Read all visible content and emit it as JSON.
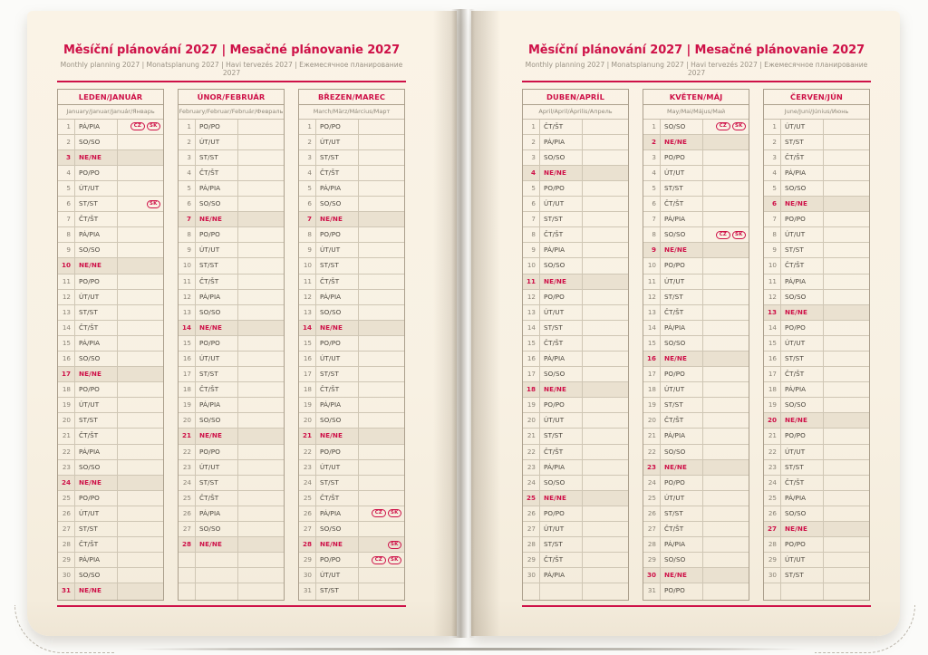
{
  "colors": {
    "accent_red": "#ce1148",
    "page_cream": "#f8f1e3",
    "sunday_row_bg": "#eae1d0",
    "grid_line": "#ab9f8c",
    "day_text": "#4b463d",
    "number_text": "#8a8376"
  },
  "holiday_badge_labels": [
    "CZ",
    "SK"
  ],
  "pages": [
    {
      "title": "Měsíční plánování 2027 | Mesačné plánovanie 2027",
      "subtitle": "Monthly planning 2027 | Monatsplanung 2027 | Havi tervezés 2027 | Ежемесячное планирование 2027",
      "months": [
        {
          "id": "january",
          "header": "LEDEN/JANUÁR",
          "subheader": "January/Januar/Január/Январь",
          "empty_rows": 0,
          "days": [
            {
              "n": 1,
              "w": "PÁ/PIA",
              "b": [
                "CZ",
                "SK"
              ]
            },
            {
              "n": 2,
              "w": "SO/SO"
            },
            {
              "n": 3,
              "w": "NE/NE"
            },
            {
              "n": 4,
              "w": "PO/PO"
            },
            {
              "n": 5,
              "w": "ÚT/UT"
            },
            {
              "n": 6,
              "w": "ST/ST",
              "b": [
                "SK"
              ]
            },
            {
              "n": 7,
              "w": "ČT/ŠT"
            },
            {
              "n": 8,
              "w": "PÁ/PIA"
            },
            {
              "n": 9,
              "w": "SO/SO"
            },
            {
              "n": 10,
              "w": "NE/NE"
            },
            {
              "n": 11,
              "w": "PO/PO"
            },
            {
              "n": 12,
              "w": "ÚT/UT"
            },
            {
              "n": 13,
              "w": "ST/ST"
            },
            {
              "n": 14,
              "w": "ČT/ŠT"
            },
            {
              "n": 15,
              "w": "PÁ/PIA"
            },
            {
              "n": 16,
              "w": "SO/SO"
            },
            {
              "n": 17,
              "w": "NE/NE"
            },
            {
              "n": 18,
              "w": "PO/PO"
            },
            {
              "n": 19,
              "w": "ÚT/UT"
            },
            {
              "n": 20,
              "w": "ST/ST"
            },
            {
              "n": 21,
              "w": "ČT/ŠT"
            },
            {
              "n": 22,
              "w": "PÁ/PIA"
            },
            {
              "n": 23,
              "w": "SO/SO"
            },
            {
              "n": 24,
              "w": "NE/NE"
            },
            {
              "n": 25,
              "w": "PO/PO"
            },
            {
              "n": 26,
              "w": "ÚT/UT"
            },
            {
              "n": 27,
              "w": "ST/ST"
            },
            {
              "n": 28,
              "w": "ČT/ŠT"
            },
            {
              "n": 29,
              "w": "PÁ/PIA"
            },
            {
              "n": 30,
              "w": "SO/SO"
            },
            {
              "n": 31,
              "w": "NE/NE"
            }
          ]
        },
        {
          "id": "february",
          "header": "ÚNOR/FEBRUÁR",
          "subheader": "February/Februar/Február/Февраль",
          "empty_rows": 3,
          "days": [
            {
              "n": 1,
              "w": "PO/PO"
            },
            {
              "n": 2,
              "w": "ÚT/UT"
            },
            {
              "n": 3,
              "w": "ST/ST"
            },
            {
              "n": 4,
              "w": "ČT/ŠT"
            },
            {
              "n": 5,
              "w": "PÁ/PIA"
            },
            {
              "n": 6,
              "w": "SO/SO"
            },
            {
              "n": 7,
              "w": "NE/NE"
            },
            {
              "n": 8,
              "w": "PO/PO"
            },
            {
              "n": 9,
              "w": "ÚT/UT"
            },
            {
              "n": 10,
              "w": "ST/ST"
            },
            {
              "n": 11,
              "w": "ČT/ŠT"
            },
            {
              "n": 12,
              "w": "PÁ/PIA"
            },
            {
              "n": 13,
              "w": "SO/SO"
            },
            {
              "n": 14,
              "w": "NE/NE"
            },
            {
              "n": 15,
              "w": "PO/PO"
            },
            {
              "n": 16,
              "w": "ÚT/UT"
            },
            {
              "n": 17,
              "w": "ST/ST"
            },
            {
              "n": 18,
              "w": "ČT/ŠT"
            },
            {
              "n": 19,
              "w": "PÁ/PIA"
            },
            {
              "n": 20,
              "w": "SO/SO"
            },
            {
              "n": 21,
              "w": "NE/NE"
            },
            {
              "n": 22,
              "w": "PO/PO"
            },
            {
              "n": 23,
              "w": "ÚT/UT"
            },
            {
              "n": 24,
              "w": "ST/ST"
            },
            {
              "n": 25,
              "w": "ČT/ŠT"
            },
            {
              "n": 26,
              "w": "PÁ/PIA"
            },
            {
              "n": 27,
              "w": "SO/SO"
            },
            {
              "n": 28,
              "w": "NE/NE"
            }
          ]
        },
        {
          "id": "march",
          "header": "BŘEZEN/MAREC",
          "subheader": "March/März/Március/Март",
          "empty_rows": 0,
          "days": [
            {
              "n": 1,
              "w": "PO/PO"
            },
            {
              "n": 2,
              "w": "ÚT/UT"
            },
            {
              "n": 3,
              "w": "ST/ST"
            },
            {
              "n": 4,
              "w": "ČT/ŠT"
            },
            {
              "n": 5,
              "w": "PÁ/PIA"
            },
            {
              "n": 6,
              "w": "SO/SO"
            },
            {
              "n": 7,
              "w": "NE/NE"
            },
            {
              "n": 8,
              "w": "PO/PO"
            },
            {
              "n": 9,
              "w": "ÚT/UT"
            },
            {
              "n": 10,
              "w": "ST/ST"
            },
            {
              "n": 11,
              "w": "ČT/ŠT"
            },
            {
              "n": 12,
              "w": "PÁ/PIA"
            },
            {
              "n": 13,
              "w": "SO/SO"
            },
            {
              "n": 14,
              "w": "NE/NE"
            },
            {
              "n": 15,
              "w": "PO/PO"
            },
            {
              "n": 16,
              "w": "ÚT/UT"
            },
            {
              "n": 17,
              "w": "ST/ST"
            },
            {
              "n": 18,
              "w": "ČT/ŠT"
            },
            {
              "n": 19,
              "w": "PÁ/PIA"
            },
            {
              "n": 20,
              "w": "SO/SO"
            },
            {
              "n": 21,
              "w": "NE/NE"
            },
            {
              "n": 22,
              "w": "PO/PO"
            },
            {
              "n": 23,
              "w": "ÚT/UT"
            },
            {
              "n": 24,
              "w": "ST/ST"
            },
            {
              "n": 25,
              "w": "ČT/ŠT"
            },
            {
              "n": 26,
              "w": "PÁ/PIA",
              "b": [
                "CZ",
                "SK"
              ]
            },
            {
              "n": 27,
              "w": "SO/SO"
            },
            {
              "n": 28,
              "w": "NE/NE",
              "b": [
                "SK"
              ]
            },
            {
              "n": 29,
              "w": "PO/PO",
              "b": [
                "CZ",
                "SK"
              ]
            },
            {
              "n": 30,
              "w": "ÚT/UT"
            },
            {
              "n": 31,
              "w": "ST/ST"
            }
          ]
        }
      ]
    },
    {
      "title": "Měsíční plánování 2027 | Mesačné plánovanie 2027",
      "subtitle": "Monthly planning 2027 | Monatsplanung 2027 | Havi tervezés 2027 | Ежемесячное планирование 2027",
      "months": [
        {
          "id": "april",
          "header": "DUBEN/APRÍL",
          "subheader": "April/April/Április/Апрель",
          "empty_rows": 1,
          "days": [
            {
              "n": 1,
              "w": "ČT/ŠT"
            },
            {
              "n": 2,
              "w": "PÁ/PIA"
            },
            {
              "n": 3,
              "w": "SO/SO"
            },
            {
              "n": 4,
              "w": "NE/NE"
            },
            {
              "n": 5,
              "w": "PO/PO"
            },
            {
              "n": 6,
              "w": "ÚT/UT"
            },
            {
              "n": 7,
              "w": "ST/ST"
            },
            {
              "n": 8,
              "w": "ČT/ŠT"
            },
            {
              "n": 9,
              "w": "PÁ/PIA"
            },
            {
              "n": 10,
              "w": "SO/SO"
            },
            {
              "n": 11,
              "w": "NE/NE"
            },
            {
              "n": 12,
              "w": "PO/PO"
            },
            {
              "n": 13,
              "w": "ÚT/UT"
            },
            {
              "n": 14,
              "w": "ST/ST"
            },
            {
              "n": 15,
              "w": "ČT/ŠT"
            },
            {
              "n": 16,
              "w": "PÁ/PIA"
            },
            {
              "n": 17,
              "w": "SO/SO"
            },
            {
              "n": 18,
              "w": "NE/NE"
            },
            {
              "n": 19,
              "w": "PO/PO"
            },
            {
              "n": 20,
              "w": "ÚT/UT"
            },
            {
              "n": 21,
              "w": "ST/ST"
            },
            {
              "n": 22,
              "w": "ČT/ŠT"
            },
            {
              "n": 23,
              "w": "PÁ/PIA"
            },
            {
              "n": 24,
              "w": "SO/SO"
            },
            {
              "n": 25,
              "w": "NE/NE"
            },
            {
              "n": 26,
              "w": "PO/PO"
            },
            {
              "n": 27,
              "w": "ÚT/UT"
            },
            {
              "n": 28,
              "w": "ST/ST"
            },
            {
              "n": 29,
              "w": "ČT/ŠT"
            },
            {
              "n": 30,
              "w": "PÁ/PIA"
            }
          ]
        },
        {
          "id": "may",
          "header": "KVĚTEN/MÁJ",
          "subheader": "May/Mai/Május/Май",
          "empty_rows": 0,
          "days": [
            {
              "n": 1,
              "w": "SO/SO",
              "b": [
                "CZ",
                "SK"
              ]
            },
            {
              "n": 2,
              "w": "NE/NE"
            },
            {
              "n": 3,
              "w": "PO/PO"
            },
            {
              "n": 4,
              "w": "ÚT/UT"
            },
            {
              "n": 5,
              "w": "ST/ST"
            },
            {
              "n": 6,
              "w": "ČT/ŠT"
            },
            {
              "n": 7,
              "w": "PÁ/PIA"
            },
            {
              "n": 8,
              "w": "SO/SO",
              "b": [
                "CZ",
                "SK"
              ]
            },
            {
              "n": 9,
              "w": "NE/NE"
            },
            {
              "n": 10,
              "w": "PO/PO"
            },
            {
              "n": 11,
              "w": "ÚT/UT"
            },
            {
              "n": 12,
              "w": "ST/ST"
            },
            {
              "n": 13,
              "w": "ČT/ŠT"
            },
            {
              "n": 14,
              "w": "PÁ/PIA"
            },
            {
              "n": 15,
              "w": "SO/SO"
            },
            {
              "n": 16,
              "w": "NE/NE"
            },
            {
              "n": 17,
              "w": "PO/PO"
            },
            {
              "n": 18,
              "w": "ÚT/UT"
            },
            {
              "n": 19,
              "w": "ST/ST"
            },
            {
              "n": 20,
              "w": "ČT/ŠT"
            },
            {
              "n": 21,
              "w": "PÁ/PIA"
            },
            {
              "n": 22,
              "w": "SO/SO"
            },
            {
              "n": 23,
              "w": "NE/NE"
            },
            {
              "n": 24,
              "w": "PO/PO"
            },
            {
              "n": 25,
              "w": "ÚT/UT"
            },
            {
              "n": 26,
              "w": "ST/ST"
            },
            {
              "n": 27,
              "w": "ČT/ŠT"
            },
            {
              "n": 28,
              "w": "PÁ/PIA"
            },
            {
              "n": 29,
              "w": "SO/SO"
            },
            {
              "n": 30,
              "w": "NE/NE"
            },
            {
              "n": 31,
              "w": "PO/PO"
            }
          ]
        },
        {
          "id": "june",
          "header": "ČERVEN/JÚN",
          "subheader": "June/Juni/Június/Июнь",
          "empty_rows": 1,
          "days": [
            {
              "n": 1,
              "w": "ÚT/UT"
            },
            {
              "n": 2,
              "w": "ST/ST"
            },
            {
              "n": 3,
              "w": "ČT/ŠT"
            },
            {
              "n": 4,
              "w": "PÁ/PIA"
            },
            {
              "n": 5,
              "w": "SO/SO"
            },
            {
              "n": 6,
              "w": "NE/NE"
            },
            {
              "n": 7,
              "w": "PO/PO"
            },
            {
              "n": 8,
              "w": "ÚT/UT"
            },
            {
              "n": 9,
              "w": "ST/ST"
            },
            {
              "n": 10,
              "w": "ČT/ŠT"
            },
            {
              "n": 11,
              "w": "PÁ/PIA"
            },
            {
              "n": 12,
              "w": "SO/SO"
            },
            {
              "n": 13,
              "w": "NE/NE"
            },
            {
              "n": 14,
              "w": "PO/PO"
            },
            {
              "n": 15,
              "w": "ÚT/UT"
            },
            {
              "n": 16,
              "w": "ST/ST"
            },
            {
              "n": 17,
              "w": "ČT/ŠT"
            },
            {
              "n": 18,
              "w": "PÁ/PIA"
            },
            {
              "n": 19,
              "w": "SO/SO"
            },
            {
              "n": 20,
              "w": "NE/NE"
            },
            {
              "n": 21,
              "w": "PO/PO"
            },
            {
              "n": 22,
              "w": "ÚT/UT"
            },
            {
              "n": 23,
              "w": "ST/ST"
            },
            {
              "n": 24,
              "w": "ČT/ŠT"
            },
            {
              "n": 25,
              "w": "PÁ/PIA"
            },
            {
              "n": 26,
              "w": "SO/SO"
            },
            {
              "n": 27,
              "w": "NE/NE"
            },
            {
              "n": 28,
              "w": "PO/PO"
            },
            {
              "n": 29,
              "w": "ÚT/UT"
            },
            {
              "n": 30,
              "w": "ST/ST"
            }
          ]
        }
      ]
    }
  ]
}
